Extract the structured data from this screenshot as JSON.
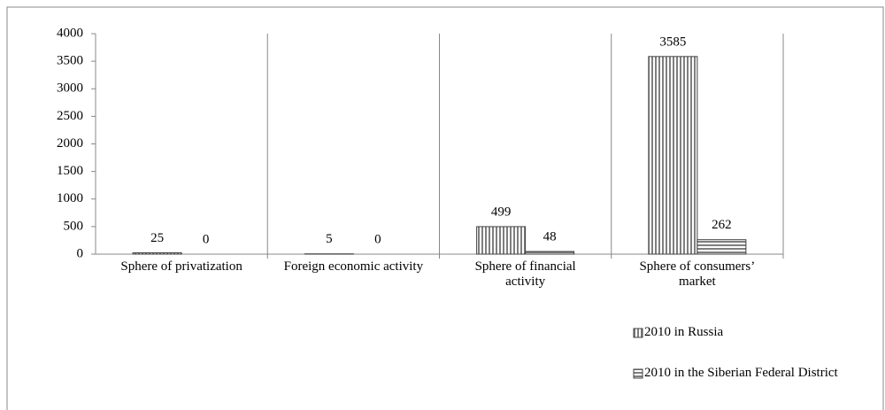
{
  "chart_data": {
    "type": "bar",
    "categories": [
      "Sphere of privatization",
      "Foreign economic activity",
      "Sphere of financial activity",
      "Sphere of consumers’ market"
    ],
    "series": [
      {
        "name": "2010 in Russia",
        "color": "#7f7f7f",
        "pattern": "vertical",
        "values": [
          25,
          5,
          499,
          3585
        ]
      },
      {
        "name": "2010 in the Siberian Federal District",
        "color": "#7f7f7f",
        "pattern": "horizontal",
        "values": [
          0,
          0,
          48,
          262
        ]
      }
    ],
    "ylim": [
      0,
      4000
    ],
    "yticks": [
      0,
      500,
      1000,
      1500,
      2000,
      2500,
      3000,
      3500,
      4000
    ]
  }
}
